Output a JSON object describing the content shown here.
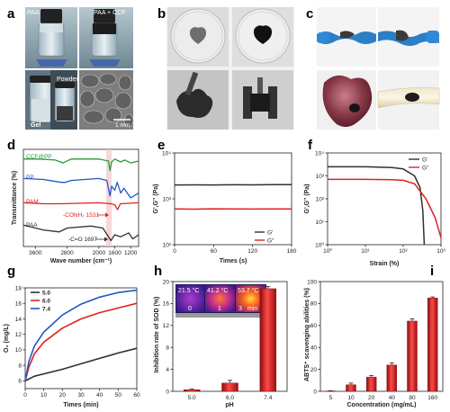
{
  "panels": {
    "a": {
      "letter": "a",
      "label_paa": "PAA",
      "label_paa_ccf": "PAA + CCF",
      "label_gel": "Gel",
      "label_powder": "Powder",
      "scale": "1 mm"
    },
    "b": {
      "letter": "b"
    },
    "c": {
      "letter": "c"
    },
    "d": {
      "letter": "d"
    },
    "e": {
      "letter": "e"
    },
    "f": {
      "letter": "f"
    },
    "g": {
      "letter": "g"
    },
    "h": {
      "letter": "h",
      "thermal": [
        {
          "temp": "21.5 °C",
          "time": "0"
        },
        {
          "temp": "41.2 °C",
          "time": "1"
        },
        {
          "temp": "53.7 °C",
          "time": "3"
        }
      ],
      "time_unit": "min"
    },
    "i": {
      "letter": "i"
    }
  },
  "colors": {
    "ccfpp": "#2a9a38",
    "pp": "#1f57c8",
    "pam": "#e02020",
    "paa": "#303030",
    "bar": "#d81f1f",
    "g50": "#303030",
    "g60": "#e02020",
    "g74": "#1f57c8"
  },
  "chart_data": [
    {
      "id": "d",
      "type": "line",
      "xlabel": "Wave number (cm⁻¹)",
      "ylabel": "Transmittance (%)",
      "xlim": [
        3900,
        1000
      ],
      "xticks": [
        3600,
        2800,
        2000,
        1600,
        1200
      ],
      "series": [
        {
          "name": "CCF@PP",
          "color": "#2a9a38",
          "points": [
            [
              3900,
              0.9
            ],
            [
              3500,
              0.9
            ],
            [
              3100,
              0.89
            ],
            [
              2900,
              0.86
            ],
            [
              2700,
              0.9
            ],
            [
              2000,
              0.9
            ],
            [
              1760,
              0.88
            ],
            [
              1720,
              0.78
            ],
            [
              1680,
              0.87
            ],
            [
              1600,
              0.9
            ],
            [
              1450,
              0.87
            ],
            [
              1350,
              0.89
            ],
            [
              1200,
              0.86
            ],
            [
              1000,
              0.88
            ]
          ]
        },
        {
          "name": "PP",
          "color": "#1f57c8",
          "points": [
            [
              3900,
              0.7
            ],
            [
              3400,
              0.69
            ],
            [
              2950,
              0.66
            ],
            [
              2850,
              0.66
            ],
            [
              2700,
              0.68
            ],
            [
              2000,
              0.7
            ],
            [
              1800,
              0.68
            ],
            [
              1720,
              0.52
            ],
            [
              1680,
              0.62
            ],
            [
              1600,
              0.58
            ],
            [
              1540,
              0.66
            ],
            [
              1450,
              0.55
            ],
            [
              1370,
              0.6
            ],
            [
              1200,
              0.5
            ],
            [
              1000,
              0.55
            ]
          ]
        },
        {
          "name": "PAM",
          "color": "#e02020",
          "points": [
            [
              3900,
              0.45
            ],
            [
              3400,
              0.44
            ],
            [
              2950,
              0.44
            ],
            [
              2000,
              0.45
            ],
            [
              1700,
              0.44
            ],
            [
              1600,
              0.43
            ],
            [
              1531,
              0.38
            ],
            [
              1460,
              0.44
            ],
            [
              1000,
              0.45
            ]
          ]
        },
        {
          "name": "PAA",
          "color": "#303030",
          "points": [
            [
              3900,
              0.22
            ],
            [
              3400,
              0.17
            ],
            [
              3000,
              0.15
            ],
            [
              2800,
              0.19
            ],
            [
              2200,
              0.21
            ],
            [
              1900,
              0.19
            ],
            [
              1697,
              0.06
            ],
            [
              1600,
              0.12
            ],
            [
              1450,
              0.1
            ],
            [
              1250,
              0.14
            ],
            [
              1150,
              0.08
            ],
            [
              1000,
              0.12
            ]
          ]
        }
      ],
      "annotations": [
        "-CONH₂ 1531",
        "-C=O 1697"
      ]
    },
    {
      "id": "e",
      "type": "line",
      "xlabel": "Times (s)",
      "ylabel": "G',G'' (Pa)",
      "xlim": [
        0,
        180
      ],
      "xticks": [
        0,
        60,
        120,
        180
      ],
      "ylim_log": [
        100,
        10000
      ],
      "yticks": [
        "10²",
        "10³",
        "10⁴"
      ],
      "series": [
        {
          "name": "G'",
          "color": "#303030",
          "points": [
            [
              0,
              2000
            ],
            [
              30,
              2010
            ],
            [
              60,
              2000
            ],
            [
              90,
              2020
            ],
            [
              120,
              2010
            ],
            [
              150,
              2030
            ],
            [
              180,
              2040
            ]
          ]
        },
        {
          "name": "G''",
          "color": "#e02020",
          "points": [
            [
              0,
              600
            ],
            [
              30,
              595
            ],
            [
              60,
              605
            ],
            [
              90,
              600
            ],
            [
              120,
              598
            ],
            [
              150,
              602
            ],
            [
              180,
              600
            ]
          ]
        }
      ]
    },
    {
      "id": "f",
      "type": "line",
      "xlabel": "Strain (%)",
      "ylabel": "G',G'' (Pa)",
      "xlim_log": [
        1,
        1000
      ],
      "xticks": [
        "10⁰",
        "10¹",
        "10²",
        "10³"
      ],
      "ylim_log": [
        1,
        10000
      ],
      "yticks": [
        "10⁰",
        "10¹",
        "10²",
        "10³",
        "10⁴"
      ],
      "series": [
        {
          "name": "G'",
          "color": "#303030",
          "points": [
            [
              1,
              2500
            ],
            [
              10,
              2500
            ],
            [
              50,
              2300
            ],
            [
              100,
              2000
            ],
            [
              200,
              1000
            ],
            [
              280,
              300
            ],
            [
              330,
              30
            ],
            [
              360,
              1
            ]
          ]
        },
        {
          "name": "G''",
          "color": "#e02020",
          "points": [
            [
              1,
              700
            ],
            [
              10,
              700
            ],
            [
              50,
              680
            ],
            [
              100,
              640
            ],
            [
              200,
              450
            ],
            [
              400,
              100
            ],
            [
              700,
              15
            ],
            [
              1000,
              2
            ]
          ]
        }
      ]
    },
    {
      "id": "g",
      "type": "line",
      "xlabel": "Times (min)",
      "ylabel": "O₂ (mg/L)",
      "xlim": [
        0,
        60
      ],
      "xticks": [
        0,
        10,
        20,
        30,
        40,
        50,
        60
      ],
      "ylim": [
        5,
        18
      ],
      "yticks": [
        6,
        8,
        10,
        12,
        14,
        16,
        18
      ],
      "series": [
        {
          "name": "5.0",
          "color": "#303030",
          "points": [
            [
              0,
              6.0
            ],
            [
              5,
              6.6
            ],
            [
              10,
              6.9
            ],
            [
              20,
              7.5
            ],
            [
              30,
              8.2
            ],
            [
              40,
              8.9
            ],
            [
              50,
              9.6
            ],
            [
              60,
              10.2
            ]
          ]
        },
        {
          "name": "6.0",
          "color": "#e02020",
          "points": [
            [
              0,
              6.0
            ],
            [
              2,
              7.8
            ],
            [
              5,
              9.5
            ],
            [
              10,
              11.0
            ],
            [
              20,
              12.8
            ],
            [
              30,
              14.0
            ],
            [
              40,
              14.8
            ],
            [
              50,
              15.4
            ],
            [
              60,
              16.0
            ]
          ]
        },
        {
          "name": "7.4",
          "color": "#1f57c8",
          "points": [
            [
              0,
              6.0
            ],
            [
              2,
              8.5
            ],
            [
              5,
              10.5
            ],
            [
              10,
              12.3
            ],
            [
              20,
              14.5
            ],
            [
              30,
              15.9
            ],
            [
              40,
              16.8
            ],
            [
              50,
              17.4
            ],
            [
              60,
              17.7
            ]
          ]
        }
      ]
    },
    {
      "id": "h",
      "type": "bar",
      "xlabel": "pH",
      "ylabel": "Inhibition rate of SOD (%)",
      "categories": [
        "5.0",
        "6.0",
        "7.4"
      ],
      "values": [
        0.3,
        1.5,
        18.7
      ],
      "errors": [
        0.1,
        0.5,
        0.4
      ],
      "ylim": [
        0,
        20
      ],
      "yticks": [
        0,
        4,
        8,
        12,
        16,
        20
      ]
    },
    {
      "id": "i",
      "type": "bar",
      "xlabel": "Concentration (mg/mL)",
      "ylabel": "ABTS⁺ scavenging abilities (%)",
      "categories": [
        "5",
        "10",
        "20",
        "40",
        "80",
        "160"
      ],
      "values": [
        0.3,
        6,
        13,
        24,
        64,
        85
      ],
      "errors": [
        0.2,
        1.5,
        1.5,
        2,
        2,
        1
      ],
      "ylim": [
        0,
        100
      ],
      "yticks": [
        0,
        20,
        40,
        60,
        80,
        100
      ]
    }
  ]
}
